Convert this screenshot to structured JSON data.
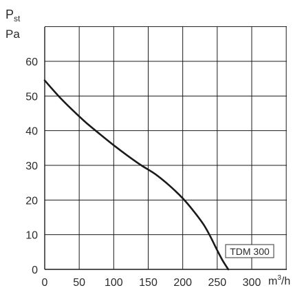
{
  "chart_data": {
    "type": "line",
    "ylabel_main": "P",
    "ylabel_sub": "st",
    "yunit": "Pa",
    "xunit_main": "m",
    "xunit_sup": "3",
    "xunit_tail": "/h",
    "xlim": [
      0,
      300
    ],
    "ylim": [
      0,
      60
    ],
    "x_ticks": [
      "0",
      "50",
      "100",
      "150",
      "200",
      "250",
      "300"
    ],
    "y_ticks": [
      "0",
      "10",
      "20",
      "30",
      "40",
      "50",
      "60"
    ],
    "grid": true,
    "series": [
      {
        "name": "TDM 300",
        "x": [
          0,
          20,
          40,
          60,
          80,
          100,
          120,
          140,
          160,
          180,
          200,
          215,
          230,
          240,
          250,
          258,
          266
        ],
        "y": [
          54.5,
          50,
          46,
          42.3,
          39,
          35.8,
          32.8,
          30,
          27.5,
          24.3,
          20.5,
          17,
          13,
          9.5,
          5.5,
          2.5,
          0
        ]
      }
    ]
  }
}
